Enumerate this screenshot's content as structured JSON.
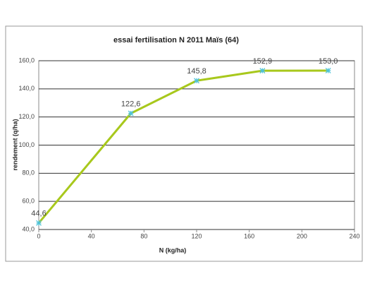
{
  "chart_data": {
    "type": "line",
    "title": "essai fertilisation  N 2011 Maïs (64)",
    "x_label": "N (kg/ha)",
    "y_label": "rendement (q/ha)",
    "x": [
      0,
      70,
      120,
      170,
      220
    ],
    "series": [
      {
        "color": "#a8c81c",
        "marker_color": "#4fc3d8",
        "values": [
          44.6,
          122.6,
          145.8,
          152.9,
          153.0
        ],
        "value_labels": [
          "44,6",
          "122,6",
          "145,8",
          "152,9",
          "153,0"
        ]
      }
    ],
    "xlim": [
      0,
      240
    ],
    "xticks": [
      0,
      40,
      80,
      120,
      160,
      200,
      240
    ],
    "ylim": [
      40,
      160
    ],
    "yticks": [
      {
        "value": 40,
        "label": "40,0"
      },
      {
        "value": 60,
        "label": "60,0"
      },
      {
        "value": 80,
        "label": "80,0"
      },
      {
        "value": 100,
        "label": "100,0"
      },
      {
        "value": 120,
        "label": "120,0"
      },
      {
        "value": 140,
        "label": "140,0"
      },
      {
        "value": 160,
        "label": "160,0"
      }
    ],
    "grid": true
  }
}
